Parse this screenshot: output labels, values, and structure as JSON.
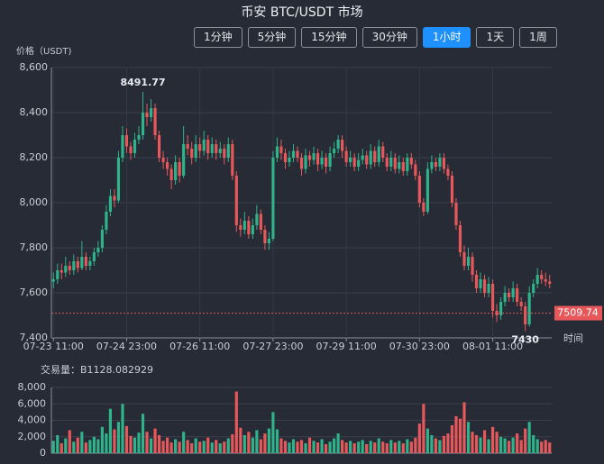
{
  "chart_data": {
    "type": "candlestick",
    "title": "币安 BTC/USDT 市场",
    "y_axis_label": "价格（USDT)",
    "x_axis_label": "时间",
    "up_color": "#2fb38a",
    "down_color": "#e8585b",
    "grid": true,
    "ylim": [
      7400,
      8600
    ],
    "yticks": [
      {
        "value": 7400,
        "label": "7,400"
      },
      {
        "value": 7600,
        "label": "7,600"
      },
      {
        "value": 7800,
        "label": "7,800"
      },
      {
        "value": 8000,
        "label": "8,000"
      },
      {
        "value": 8200,
        "label": "8,200"
      },
      {
        "value": 8400,
        "label": "8,400"
      },
      {
        "value": 8600,
        "label": "8,600"
      }
    ],
    "categories": [
      "07-23 11:00",
      null,
      null,
      null,
      null,
      null,
      null,
      null,
      null,
      null,
      null,
      null,
      null,
      null,
      null,
      null,
      null,
      null,
      "07-24 23:00",
      null,
      null,
      null,
      null,
      null,
      null,
      null,
      null,
      null,
      null,
      null,
      null,
      null,
      null,
      null,
      null,
      null,
      "07-26 11:00",
      null,
      null,
      null,
      null,
      null,
      null,
      null,
      null,
      null,
      null,
      null,
      null,
      null,
      null,
      null,
      null,
      null,
      "07-27 23:00",
      null,
      null,
      null,
      null,
      null,
      null,
      null,
      null,
      null,
      null,
      null,
      null,
      null,
      null,
      null,
      null,
      null,
      "07-29 11:00",
      null,
      null,
      null,
      null,
      null,
      null,
      null,
      null,
      null,
      null,
      null,
      null,
      null,
      null,
      null,
      null,
      null,
      "07-30 23:00",
      null,
      null,
      null,
      null,
      null,
      null,
      null,
      null,
      null,
      null,
      null,
      null,
      null,
      null,
      null,
      null,
      null,
      "08-01 11:00",
      null,
      null,
      null,
      null,
      null,
      null,
      null,
      null,
      null,
      null,
      null,
      null,
      null,
      null
    ],
    "ohlc": [
      [
        7650,
        7690,
        7620,
        7660
      ],
      [
        7660,
        7730,
        7640,
        7700
      ],
      [
        7700,
        7730,
        7660,
        7690
      ],
      [
        7690,
        7760,
        7670,
        7720
      ],
      [
        7720,
        7740,
        7680,
        7700
      ],
      [
        7700,
        7770,
        7680,
        7740
      ],
      [
        7740,
        7760,
        7690,
        7710
      ],
      [
        7710,
        7830,
        7700,
        7760
      ],
      [
        7760,
        7780,
        7700,
        7720
      ],
      [
        7720,
        7760,
        7700,
        7740
      ],
      [
        7740,
        7800,
        7720,
        7780
      ],
      [
        7780,
        7830,
        7760,
        7800
      ],
      [
        7800,
        7900,
        7780,
        7880
      ],
      [
        7880,
        7990,
        7860,
        7960
      ],
      [
        7960,
        8060,
        7940,
        8030
      ],
      [
        8030,
        8060,
        7980,
        8010
      ],
      [
        8010,
        8230,
        8000,
        8200
      ],
      [
        8200,
        8340,
        8180,
        8300
      ],
      [
        8300,
        8330,
        8220,
        8250
      ],
      [
        8250,
        8270,
        8190,
        8220
      ],
      [
        8220,
        8310,
        8200,
        8280
      ],
      [
        8280,
        8340,
        8260,
        8300
      ],
      [
        8300,
        8491.77,
        8280,
        8400
      ],
      [
        8400,
        8440,
        8340,
        8380
      ],
      [
        8380,
        8460,
        8360,
        8420
      ],
      [
        8420,
        8440,
        8280,
        8300
      ],
      [
        8300,
        8320,
        8180,
        8200
      ],
      [
        8200,
        8230,
        8150,
        8180
      ],
      [
        8180,
        8200,
        8120,
        8150
      ],
      [
        8150,
        8170,
        8060,
        8100
      ],
      [
        8100,
        8210,
        8080,
        8180
      ],
      [
        8180,
        8200,
        8090,
        8120
      ],
      [
        8120,
        8340,
        8110,
        8260
      ],
      [
        8260,
        8300,
        8210,
        8240
      ],
      [
        8240,
        8270,
        8170,
        8200
      ],
      [
        8200,
        8300,
        8180,
        8260
      ],
      [
        8260,
        8290,
        8200,
        8230
      ],
      [
        8230,
        8320,
        8210,
        8280
      ],
      [
        8280,
        8300,
        8190,
        8220
      ],
      [
        8220,
        8290,
        8200,
        8260
      ],
      [
        8260,
        8280,
        8190,
        8220
      ],
      [
        8220,
        8270,
        8200,
        8240
      ],
      [
        8240,
        8260,
        8170,
        8200
      ],
      [
        8200,
        8290,
        8180,
        8260
      ],
      [
        8260,
        8280,
        8100,
        8120
      ],
      [
        8120,
        8140,
        7870,
        7900
      ],
      [
        7900,
        7930,
        7850,
        7880
      ],
      [
        7880,
        7960,
        7860,
        7920
      ],
      [
        7920,
        7940,
        7840,
        7860
      ],
      [
        7860,
        7930,
        7840,
        7900
      ],
      [
        7900,
        7990,
        7880,
        7950
      ],
      [
        7950,
        7970,
        7860,
        7880
      ],
      [
        7880,
        7900,
        7790,
        7820
      ],
      [
        7820,
        7870,
        7790,
        7840
      ],
      [
        7840,
        8230,
        7830,
        8200
      ],
      [
        8200,
        8290,
        8180,
        8250
      ],
      [
        8250,
        8280,
        8190,
        8220
      ],
      [
        8220,
        8240,
        8150,
        8180
      ],
      [
        8180,
        8230,
        8160,
        8200
      ],
      [
        8200,
        8260,
        8180,
        8230
      ],
      [
        8230,
        8250,
        8180,
        8200
      ],
      [
        8200,
        8220,
        8120,
        8150
      ],
      [
        8150,
        8240,
        8130,
        8210
      ],
      [
        8210,
        8230,
        8160,
        8190
      ],
      [
        8190,
        8250,
        8170,
        8220
      ],
      [
        8220,
        8240,
        8140,
        8170
      ],
      [
        8170,
        8230,
        8150,
        8200
      ],
      [
        8200,
        8220,
        8130,
        8160
      ],
      [
        8160,
        8250,
        8140,
        8220
      ],
      [
        8220,
        8270,
        8200,
        8240
      ],
      [
        8240,
        8300,
        8220,
        8280
      ],
      [
        8280,
        8300,
        8200,
        8230
      ],
      [
        8230,
        8250,
        8160,
        8180
      ],
      [
        8180,
        8230,
        8160,
        8200
      ],
      [
        8200,
        8220,
        8140,
        8160
      ],
      [
        8160,
        8220,
        8140,
        8190
      ],
      [
        8190,
        8240,
        8170,
        8210
      ],
      [
        8210,
        8230,
        8150,
        8170
      ],
      [
        8170,
        8260,
        8150,
        8230
      ],
      [
        8230,
        8250,
        8160,
        8180
      ],
      [
        8180,
        8280,
        8160,
        8250
      ],
      [
        8250,
        8270,
        8180,
        8200
      ],
      [
        8200,
        8220,
        8140,
        8160
      ],
      [
        8160,
        8230,
        8140,
        8200
      ],
      [
        8200,
        8220,
        8130,
        8150
      ],
      [
        8150,
        8210,
        8130,
        8180
      ],
      [
        8180,
        8200,
        8120,
        8140
      ],
      [
        8140,
        8220,
        8120,
        8200
      ],
      [
        8200,
        8220,
        8150,
        8170
      ],
      [
        8170,
        8190,
        8100,
        8120
      ],
      [
        8120,
        8140,
        7980,
        8000
      ],
      [
        8000,
        8020,
        7940,
        7960
      ],
      [
        7960,
        8180,
        7950,
        8150
      ],
      [
        8150,
        8210,
        8130,
        8180
      ],
      [
        8180,
        8200,
        8140,
        8160
      ],
      [
        8160,
        8220,
        8140,
        8200
      ],
      [
        8200,
        8220,
        8130,
        8150
      ],
      [
        8150,
        8170,
        8100,
        8120
      ],
      [
        8120,
        8140,
        7980,
        8000
      ],
      [
        8000,
        8020,
        7880,
        7900
      ],
      [
        7900,
        7920,
        7760,
        7780
      ],
      [
        7780,
        7810,
        7700,
        7720
      ],
      [
        7720,
        7800,
        7700,
        7760
      ],
      [
        7760,
        7780,
        7650,
        7680
      ],
      [
        7680,
        7700,
        7600,
        7620
      ],
      [
        7620,
        7690,
        7600,
        7660
      ],
      [
        7660,
        7680,
        7580,
        7600
      ],
      [
        7600,
        7670,
        7580,
        7640
      ],
      [
        7640,
        7660,
        7490,
        7520
      ],
      [
        7520,
        7550,
        7470,
        7500
      ],
      [
        7500,
        7580,
        7480,
        7560
      ],
      [
        7560,
        7630,
        7540,
        7600
      ],
      [
        7600,
        7620,
        7560,
        7580
      ],
      [
        7580,
        7650,
        7560,
        7620
      ],
      [
        7620,
        7640,
        7540,
        7560
      ],
      [
        7560,
        7580,
        7520,
        7540
      ],
      [
        7540,
        7560,
        7430,
        7460
      ],
      [
        7460,
        7630,
        7450,
        7600
      ],
      [
        7600,
        7660,
        7580,
        7640
      ],
      [
        7640,
        7710,
        7620,
        7680
      ],
      [
        7680,
        7700,
        7640,
        7660
      ],
      [
        7660,
        7690,
        7630,
        7650
      ],
      [
        7650,
        7680,
        7620,
        7640
      ]
    ],
    "max_point": "chart_data.ohlc.22.1",
    "min_point": "chart_data.ohlc.116.2",
    "last_price": 7509.74,
    "volume": {
      "label": "交易量：B1128.082929",
      "ylim": [
        0,
        8000
      ],
      "yticks": [
        0,
        {
          "value": 2000,
          "label": "2,000"
        },
        {
          "value": 4000,
          "label": "4,000"
        },
        {
          "value": 6000,
          "label": "6,000"
        },
        {
          "value": 8000,
          "label": "8,000"
        }
      ],
      "values": [
        1500,
        2200,
        1200,
        1800,
        2800,
        1400,
        1900,
        2600,
        1300,
        1600,
        2000,
        1700,
        3200,
        2400,
        5400,
        2900,
        3800,
        6000,
        3300,
        2100,
        1900,
        2500,
        4800,
        2600,
        1800,
        3000,
        2200,
        1500,
        1900,
        1300,
        1700,
        1400,
        2600,
        1600,
        1200,
        1800,
        1400,
        1500,
        1900,
        1300,
        1600,
        1200,
        1400,
        1800,
        2300,
        7500,
        3100,
        2200,
        2600,
        1900,
        2800,
        1700,
        2400,
        3000,
        5000,
        2900,
        1800,
        1500,
        1300,
        1700,
        1400,
        1600,
        1200,
        1900,
        1500,
        1300,
        1700,
        1100,
        1400,
        1800,
        2400,
        1600,
        1300,
        1500,
        1200,
        1400,
        1600,
        1100,
        1500,
        1300,
        1800,
        1400,
        1200,
        1600,
        1300,
        1500,
        1200,
        1700,
        1400,
        1900,
        3600,
        6000,
        3000,
        2200,
        1800,
        1600,
        2100,
        2400,
        3400,
        4500,
        4200,
        6200,
        3800,
        2600,
        2200,
        1900,
        2800,
        1700,
        3200,
        2600,
        2000,
        1800,
        1500,
        1900,
        2400,
        1600,
        3000,
        3800,
        2200,
        1700,
        1400,
        1600,
        1300
      ]
    }
  },
  "toolbar": {
    "buttons": [
      {
        "label": "1分钟"
      },
      {
        "label": "5分钟"
      },
      {
        "label": "15分钟"
      },
      {
        "label": "30分钟"
      },
      {
        "label": "1小时",
        "active": true
      },
      {
        "label": "1天"
      },
      {
        "label": "1周"
      }
    ]
  }
}
